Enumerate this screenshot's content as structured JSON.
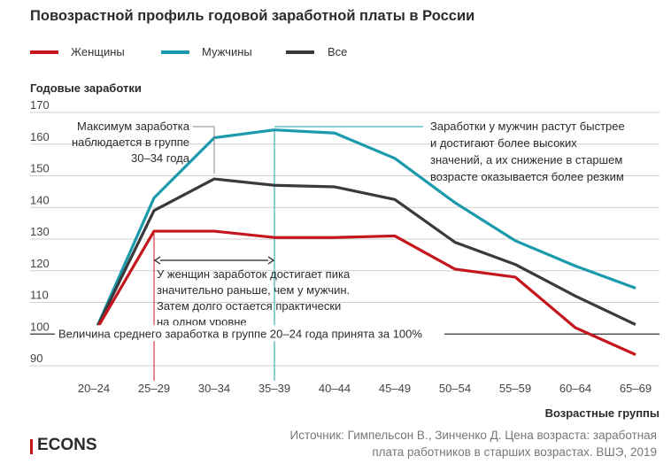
{
  "header": {
    "title": "Повозрастной профиль годовой заработной платы в России"
  },
  "legend": [
    {
      "label": "Женщины",
      "color": "#c4161c"
    },
    {
      "label": "Мужчины",
      "color": "#1a9aab"
    },
    {
      "label": "Все",
      "color": "#3a3a3c"
    }
  ],
  "chart_data": {
    "type": "line",
    "title": "Повозрастной профиль годовой заработной платы в России",
    "ylabel": "Годовые заработки",
    "xlabel": "Возрастные группы",
    "categories": [
      "20–24",
      "25–29",
      "30–34",
      "35–39",
      "40–44",
      "45–49",
      "50–54",
      "55–59",
      "60–64",
      "65–69"
    ],
    "ylim": [
      90,
      170
    ],
    "yticks": [
      90,
      100,
      110,
      120,
      130,
      140,
      150,
      160,
      170
    ],
    "ytick_labels": [
      "90",
      "100",
      "110",
      "120",
      "130",
      "140",
      "150",
      "160",
      "170"
    ],
    "series": [
      {
        "name": "Женщины",
        "color": "#c4161c",
        "values": [
          100,
          132.5,
          132.5,
          130.5,
          130.5,
          131,
          120.5,
          118,
          102,
          93.5
        ]
      },
      {
        "name": "Мужчины",
        "color": "#1a9aab",
        "values": [
          100,
          143,
          162,
          164.5,
          163.5,
          155.5,
          141.5,
          129.5,
          121.5,
          114.5
        ]
      },
      {
        "name": "Все",
        "color": "#3a3a3c",
        "values": [
          100,
          139,
          149,
          147,
          146.5,
          142.5,
          129,
          122,
          112,
          103
        ]
      }
    ],
    "annotations": {
      "max_note": [
        "Максимум заработка",
        "наблюдается в группе",
        "30–34 года"
      ],
      "men_note": [
        "Заработки у мужчин растут быстрее",
        "и достигают более высоких",
        "значений, а их снижение в старшем",
        "возрасте оказывается более резким"
      ],
      "women_note": [
        "У женщин заработок достигает пика",
        "значительно раньше, чем у мужчин.",
        "Затем долго остается практически",
        "на одном уровне"
      ],
      "base_note": "Величина среднего заработка в группе 20–24 года принята за 100%"
    }
  },
  "footer": {
    "source": "Источник: Гимпельсон В., Зинченко Д. Цена возраста: заработная плата работников в старших возрастах. ВШЭ, 2019",
    "logo": "ECONS"
  }
}
